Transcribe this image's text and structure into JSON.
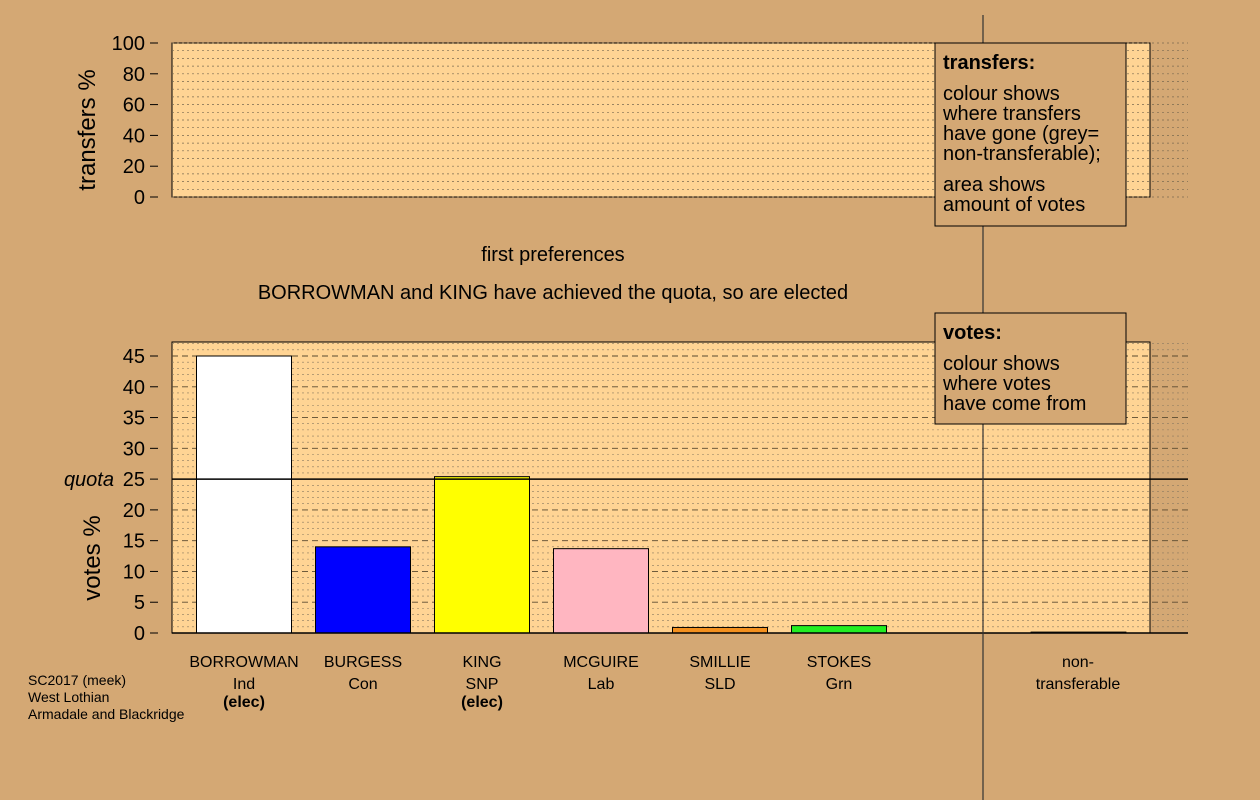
{
  "colors": {
    "background": "#d4a874",
    "plot_area": "#ffd494",
    "non_transferable": "#808080"
  },
  "chart_data": [
    {
      "type": "bar",
      "ylabel": "transfers %",
      "ylim": [
        0,
        100
      ],
      "yticks": [
        0,
        20,
        40,
        60,
        80,
        100
      ],
      "values": [],
      "legend": {
        "title": "transfers:",
        "lines1": [
          "colour shows",
          "where transfers",
          "have gone (grey=",
          "non-transferable);"
        ],
        "lines2": [
          "area shows",
          "amount of votes"
        ],
        "placement": "top-right"
      }
    },
    {
      "type": "bar",
      "title": "first preferences",
      "subtitle": "BORROWMAN and KING have achieved the quota, so are elected",
      "ylabel": "votes %",
      "ylim": [
        0,
        45
      ],
      "yticks": [
        0,
        5,
        10,
        15,
        20,
        25,
        30,
        35,
        40,
        45
      ],
      "quota": 25,
      "quota_label": "quota",
      "categories": [
        {
          "name": "BORROWMAN",
          "party": "Ind",
          "status": "(elec)",
          "value": 45.0,
          "color": "#ffffff"
        },
        {
          "name": "BURGESS",
          "party": "Con",
          "status": "",
          "value": 14.0,
          "color": "#0000ff"
        },
        {
          "name": "KING",
          "party": "SNP",
          "status": "(elec)",
          "value": 25.4,
          "color": "#ffff00"
        },
        {
          "name": "MCGUIRE",
          "party": "Lab",
          "status": "",
          "value": 13.7,
          "color": "#ffb6c1"
        },
        {
          "name": "SMILLIE",
          "party": "SLD",
          "status": "",
          "value": 0.9,
          "color": "#f4901e"
        },
        {
          "name": "STOKES",
          "party": "Grn",
          "status": "",
          "value": 1.2,
          "color": "#22ee22"
        }
      ],
      "non_transferable": {
        "line1": "non-",
        "line2": "transferable",
        "value": 0
      },
      "legend": {
        "title": "votes:",
        "lines": [
          "colour shows",
          "where votes",
          "have come from"
        ],
        "placement": "top-right"
      }
    }
  ],
  "footer": {
    "lines": [
      "SC2017 (meek)",
      "West Lothian",
      "Armadale and Blackridge"
    ]
  }
}
